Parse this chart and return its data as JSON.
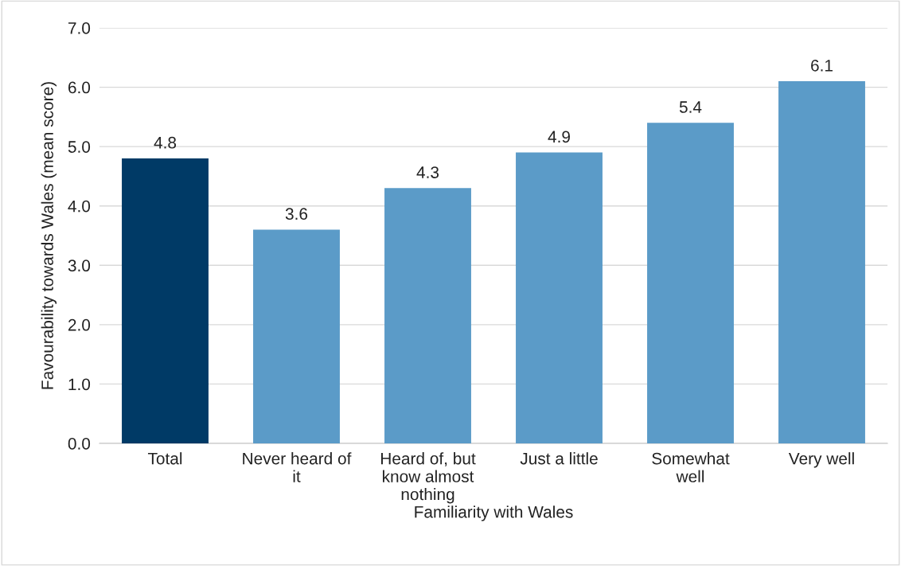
{
  "chart_data": {
    "type": "bar",
    "xlabel": "Familiarity with Wales",
    "ylabel": "Favourability towards Wales (mean score)",
    "categories": [
      "Total",
      "Never heard of\nit",
      "Heard of, but\nknow almost\nnothing",
      "Just a little",
      "Somewhat\nwell",
      "Very well"
    ],
    "values": [
      4.8,
      3.6,
      4.3,
      4.9,
      5.4,
      6.1
    ],
    "colors": [
      "#003a66",
      "#5b9bc8",
      "#5b9bc8",
      "#5b9bc8",
      "#5b9bc8",
      "#5b9bc8"
    ],
    "ylim": [
      0,
      7
    ],
    "yticks": [
      {
        "value": 0,
        "label": "0.0"
      },
      {
        "value": 1,
        "label": "1.0"
      },
      {
        "value": 2,
        "label": "2.0"
      },
      {
        "value": 3,
        "label": "3.0"
      },
      {
        "value": 4,
        "label": "4.0"
      },
      {
        "value": 5,
        "label": "5.0"
      },
      {
        "value": 6,
        "label": "6.0"
      },
      {
        "value": 7,
        "label": "7.0"
      }
    ],
    "grid": "y",
    "data_labels": true,
    "legend": false
  }
}
